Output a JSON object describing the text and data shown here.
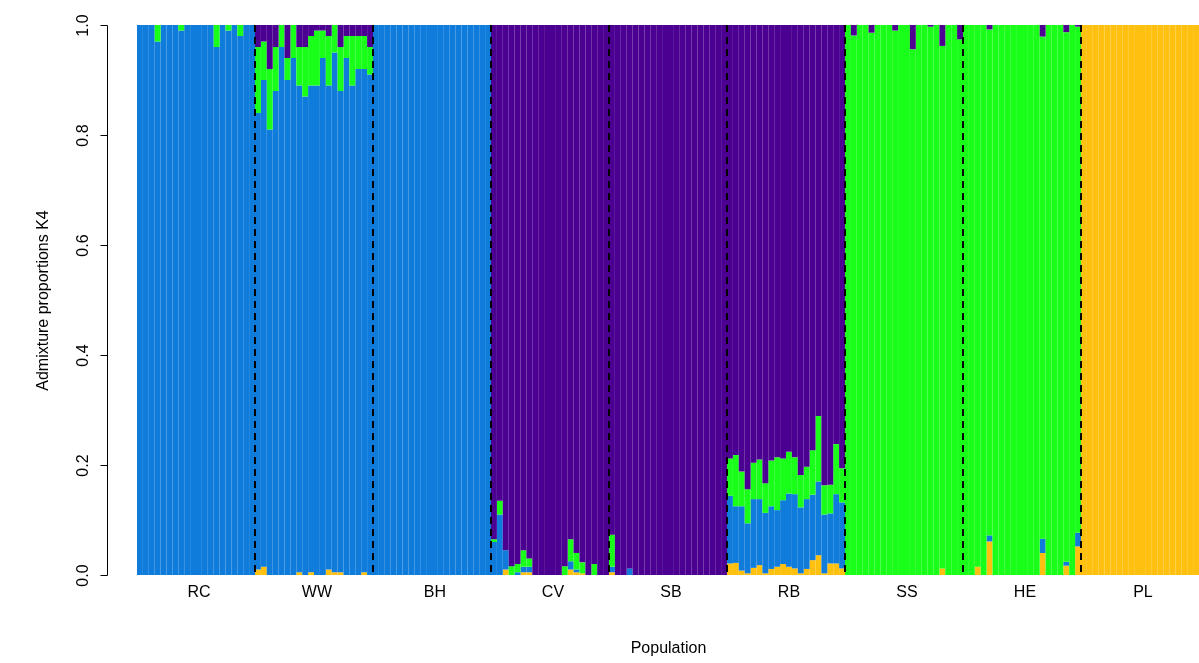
{
  "chart_data": {
    "type": "bar",
    "stacked": true,
    "xlabel": "Population",
    "ylabel": "Admixture proportions K4",
    "categories": [
      null,
      null,
      null,
      null,
      null,
      null,
      null,
      null,
      null,
      null,
      "RC",
      null,
      null,
      null,
      null,
      null,
      null,
      null,
      null,
      null,
      null,
      null,
      null,
      null,
      null,
      null,
      null,
      null,
      null,
      null,
      "WW",
      null,
      null,
      null,
      null,
      null,
      null,
      null,
      null,
      null,
      null,
      null,
      null,
      null,
      null,
      null,
      null,
      null,
      null,
      null,
      "BH",
      null,
      null,
      null,
      null,
      null,
      null,
      null,
      null,
      null,
      null,
      null,
      null,
      null,
      null,
      null,
      null,
      null,
      null,
      null,
      "CV",
      null,
      null,
      null,
      null,
      null,
      null,
      null,
      null,
      null,
      null,
      null,
      null,
      null,
      null,
      null,
      null,
      null,
      null,
      null,
      "SB",
      null,
      null,
      null,
      null,
      null,
      null,
      null,
      null,
      null,
      null,
      null,
      null,
      null,
      null,
      null,
      null,
      null,
      null,
      null,
      "RB",
      null,
      null,
      null,
      null,
      null,
      null,
      null,
      null,
      null,
      null,
      null,
      null,
      null,
      null,
      null,
      null,
      null,
      null,
      null,
      "SS",
      null,
      null,
      null,
      null,
      null,
      null,
      null,
      null,
      null,
      null,
      null,
      null,
      null,
      null,
      null,
      null,
      null,
      null,
      null,
      "HE",
      null,
      null,
      null,
      null,
      null,
      null,
      null,
      null,
      null,
      null,
      null,
      null,
      null,
      null,
      null,
      null,
      null,
      null,
      null,
      "PL",
      null,
      null,
      null,
      null,
      null,
      null,
      null,
      null,
      null
    ],
    "ylim": [
      0,
      1
    ],
    "yticks": [
      {
        "value": 0,
        "label": "0.0"
      },
      0.2,
      0.4,
      0.6,
      0.8,
      {
        "value": 1,
        "label": "1.0"
      }
    ],
    "grid": false,
    "legend": false,
    "series": [
      {
        "color": "#ffc010",
        "values": [
          0,
          0,
          0,
          0,
          0,
          0,
          0,
          0,
          0,
          0,
          0,
          0,
          0,
          0,
          0,
          0,
          0,
          0,
          0,
          0,
          0.01,
          0.015,
          0,
          0,
          0,
          0,
          0,
          0.005,
          0,
          0.005,
          0,
          0,
          0.01,
          0.005,
          0.005,
          0,
          0,
          0,
          0.005,
          0,
          0,
          0,
          0,
          0,
          0,
          0,
          0,
          0,
          0,
          0,
          0,
          0,
          0,
          0,
          0,
          0,
          0,
          0,
          0,
          0,
          0,
          0,
          0.01,
          0,
          0,
          0.005,
          0.005,
          0,
          0,
          0,
          0,
          0,
          0,
          0.01,
          0.005,
          0.003,
          0,
          0,
          0,
          0,
          0.005,
          0,
          0,
          0,
          0,
          0,
          0,
          0,
          0,
          0,
          0,
          0,
          0,
          0,
          0,
          0,
          0,
          0,
          0,
          0,
          0.021,
          0.022,
          0.008,
          0.003,
          0.013,
          0.018,
          0.003,
          0.011,
          0.015,
          0.02,
          0.015,
          0.012,
          0.003,
          0.011,
          0.027,
          0.036,
          0.003,
          0.021,
          0.021,
          0.012,
          0,
          0,
          0,
          0,
          0,
          0,
          0,
          0,
          0,
          0,
          0,
          0,
          0,
          0,
          0,
          0,
          0.012,
          0,
          0,
          0,
          0,
          0,
          0.015,
          0,
          0.061,
          0,
          0,
          0,
          0,
          0,
          0,
          0,
          0,
          0.04,
          0,
          0,
          0,
          0.017,
          0,
          0.052,
          1,
          1,
          1,
          1,
          1,
          1,
          1,
          1,
          1,
          1,
          1,
          1,
          1,
          1,
          1,
          1,
          1,
          1,
          1,
          1
        ]
      },
      {
        "color": "#0f7cdb",
        "values": [
          1,
          1,
          1,
          0.97,
          1,
          1,
          1,
          0.99,
          1,
          1,
          1,
          1,
          1,
          0.96,
          1,
          0.99,
          1,
          0.98,
          1,
          1,
          0.83,
          0.885,
          0.81,
          0.88,
          0.96,
          0.9,
          0.94,
          0.885,
          0.87,
          0.885,
          0.89,
          0.94,
          0.88,
          0.945,
          0.875,
          0.94,
          0.89,
          0.92,
          0.915,
          0.91,
          1,
          1,
          1,
          1,
          1,
          1,
          1,
          1,
          1,
          1,
          1,
          1,
          1,
          1,
          1,
          1,
          1,
          1,
          1,
          1,
          0.06,
          0.11,
          0.035,
          0,
          0.005,
          0.01,
          0.01,
          0,
          0,
          0,
          0,
          0,
          0,
          0.015,
          0.005,
          0,
          0,
          0,
          0,
          0,
          0.01,
          0,
          0,
          0.012,
          0,
          0,
          0,
          0,
          0,
          0,
          0,
          0,
          0,
          0,
          0,
          0,
          0,
          0,
          0,
          0,
          0.123,
          0.103,
          0.117,
          0.091,
          0.125,
          0.12,
          0.11,
          0.114,
          0.103,
          0.116,
          0.133,
          0.135,
          0.12,
          0.127,
          0.119,
          0.134,
          0.107,
          0.091,
          0.126,
          0.12,
          0,
          0,
          0,
          0,
          0,
          0,
          0,
          0,
          0,
          0,
          0,
          0,
          0,
          0,
          0,
          0,
          0,
          0,
          0,
          0,
          0,
          0,
          0,
          0,
          0.011,
          0,
          0,
          0,
          0,
          0,
          0,
          0,
          0,
          0.026,
          0,
          0,
          0,
          0.007,
          0,
          0.025,
          0,
          0,
          0,
          0,
          0,
          0,
          0,
          0,
          0,
          0,
          0,
          0,
          0,
          0,
          0,
          0,
          0,
          0,
          0,
          0
        ]
      },
      {
        "color": "#19ff19",
        "values": [
          0,
          0,
          0,
          0.03,
          0,
          0,
          0,
          0.01,
          0,
          0,
          0,
          0,
          0,
          0.04,
          0,
          0.01,
          0,
          0.02,
          0,
          0,
          0.12,
          0.07,
          0.11,
          0.08,
          0.04,
          0.04,
          0.06,
          0.07,
          0.09,
          0.09,
          0.1,
          0.05,
          0.09,
          0.05,
          0.08,
          0.04,
          0.09,
          0.06,
          0.06,
          0.05,
          0,
          0,
          0,
          0,
          0,
          0,
          0,
          0,
          0,
          0,
          0,
          0,
          0,
          0,
          0,
          0,
          0,
          0,
          0,
          0,
          0.005,
          0.025,
          0,
          0.016,
          0.015,
          0.03,
          0.015,
          0,
          0,
          0,
          0,
          0,
          0.016,
          0.04,
          0.03,
          0.02,
          0,
          0.02,
          0,
          0,
          0.058,
          0,
          0,
          0,
          0,
          0,
          0,
          0,
          0,
          0,
          0,
          0,
          0,
          0,
          0,
          0,
          0,
          0,
          0,
          0,
          0.068,
          0.093,
          0.063,
          0.062,
          0.066,
          0.072,
          0.054,
          0.083,
          0.096,
          0.076,
          0.076,
          0.067,
          0.059,
          0.059,
          0.081,
          0.119,
          0.053,
          0.052,
          0.091,
          0.062,
          1,
          0.981,
          1,
          1,
          0.986,
          1,
          1,
          1,
          0.99,
          1,
          1,
          0.956,
          1,
          1,
          0.997,
          1,
          0.95,
          1,
          1,
          0.974,
          1,
          1,
          0.985,
          1,
          0.92,
          1,
          1,
          1,
          1,
          1,
          1,
          1,
          1,
          0.913,
          1,
          1,
          1,
          0.963,
          1,
          0.92,
          0,
          0,
          0,
          0,
          0,
          0,
          0,
          0,
          0,
          0,
          0,
          0,
          0,
          0,
          0,
          0,
          0,
          0,
          0,
          0
        ]
      },
      {
        "color": "#4b0092",
        "values": [
          0,
          0,
          0,
          0,
          0,
          0,
          0,
          0,
          0,
          0,
          0,
          0,
          0,
          0,
          0,
          0,
          0,
          0,
          0,
          0,
          0.04,
          0.03,
          0.08,
          0.04,
          0,
          0.06,
          0,
          0.04,
          0.04,
          0.02,
          0.01,
          0.01,
          0.02,
          0,
          0.04,
          0.02,
          0.02,
          0.02,
          0.02,
          0.04,
          0,
          0,
          0,
          0,
          0,
          0,
          0,
          0,
          0,
          0,
          0,
          0,
          0,
          0,
          0,
          0,
          0,
          0,
          0,
          0,
          0.935,
          0.865,
          0.955,
          0.984,
          0.98,
          0.955,
          0.97,
          1,
          1,
          1,
          1,
          1,
          0.984,
          0.935,
          0.96,
          0.977,
          1,
          0.98,
          1,
          1,
          0.927,
          1,
          1,
          0.988,
          1,
          1,
          1,
          1,
          1,
          1,
          1,
          1,
          1,
          1,
          1,
          1,
          1,
          1,
          1,
          1,
          0.788,
          0.782,
          0.812,
          0.844,
          0.796,
          0.79,
          0.833,
          0.792,
          0.786,
          0.788,
          0.776,
          0.786,
          0.818,
          0.803,
          0.773,
          0.711,
          0.837,
          0.836,
          0.762,
          0.806,
          0,
          0.019,
          0,
          0,
          0.014,
          0,
          0,
          0,
          0.01,
          0,
          0,
          0.044,
          0,
          0,
          0.003,
          0,
          0.038,
          0,
          0,
          0.026,
          0,
          0,
          0,
          0,
          0.008,
          0,
          0,
          0,
          0,
          0,
          0,
          0,
          0,
          0.021,
          0,
          0,
          0,
          0.013,
          0,
          0.003,
          0,
          0,
          0,
          0,
          0,
          0,
          0,
          0,
          0,
          0,
          0,
          0,
          0,
          0,
          0,
          0,
          0,
          0,
          0,
          0
        ]
      }
    ]
  }
}
